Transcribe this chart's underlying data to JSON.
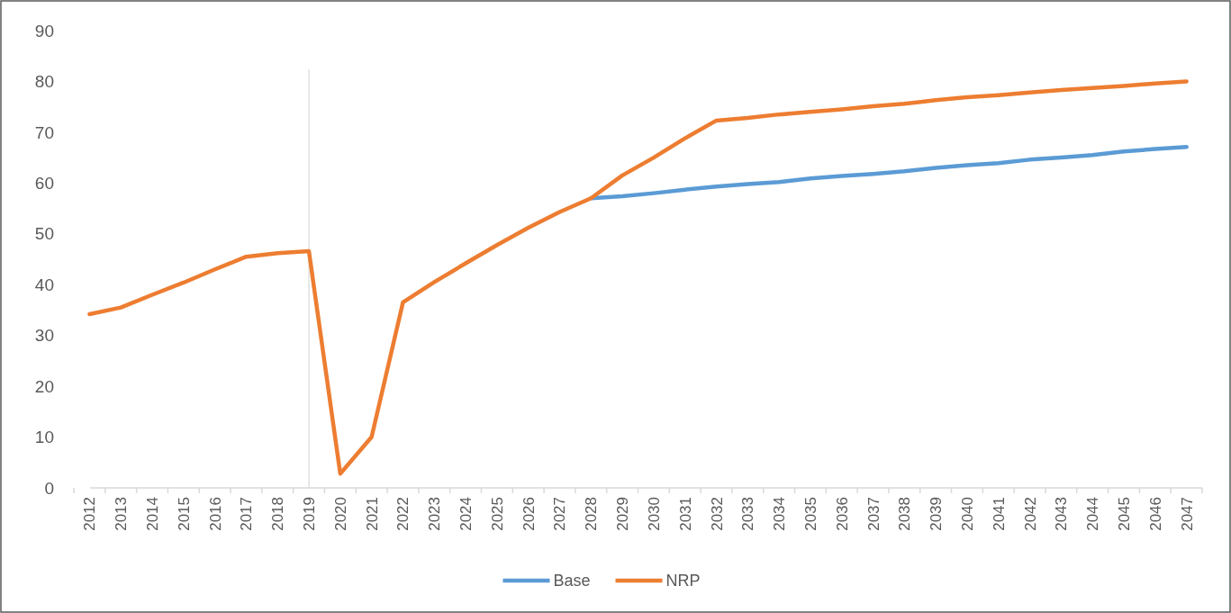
{
  "chart_data": {
    "type": "line",
    "categories": [
      "2012",
      "2013",
      "2014",
      "2015",
      "2016",
      "2017",
      "2018",
      "2019",
      "2020",
      "2021",
      "2022",
      "2023",
      "2024",
      "2025",
      "2026",
      "2027",
      "2028",
      "2029",
      "2030",
      "2031",
      "2032",
      "2033",
      "2034",
      "2035",
      "2036",
      "2037",
      "2038",
      "2039",
      "2040",
      "2041",
      "2042",
      "2043",
      "2044",
      "2045",
      "2046",
      "2047"
    ],
    "series": [
      {
        "name": "Base",
        "color": "#5b9bd5",
        "values": [
          null,
          null,
          null,
          null,
          null,
          null,
          null,
          null,
          null,
          null,
          null,
          null,
          null,
          null,
          null,
          null,
          57,
          57.4,
          58,
          58.7,
          59.3,
          59.8,
          60.2,
          60.9,
          61.4,
          61.8,
          62.3,
          63,
          63.5,
          63.9,
          64.6,
          65,
          65.5,
          66.2,
          66.7,
          67.1
        ]
      },
      {
        "name": "NRP",
        "color": "#ed7d31",
        "values": [
          34.2,
          35.5,
          38,
          40.4,
          43,
          45.5,
          46.2,
          46.6,
          2.8,
          10,
          36.5,
          40.5,
          44.2,
          47.8,
          51.2,
          54.3,
          57,
          61.5,
          65,
          68.8,
          72.3,
          72.8,
          73.5,
          74,
          74.5,
          75.1,
          75.6,
          76.3,
          76.9,
          77.3,
          77.8,
          78.3,
          78.7,
          79.1,
          79.6,
          80
        ]
      }
    ],
    "ylim": [
      0,
      90
    ],
    "yticks": [
      0,
      10,
      20,
      30,
      40,
      50,
      60,
      70,
      80,
      90
    ],
    "grid": false,
    "legend": "bottom",
    "marker": "none",
    "line_style": "solid",
    "ref_lines": [
      {
        "axis": "x",
        "value": "2019",
        "color": "#d9d9d9"
      }
    ]
  }
}
